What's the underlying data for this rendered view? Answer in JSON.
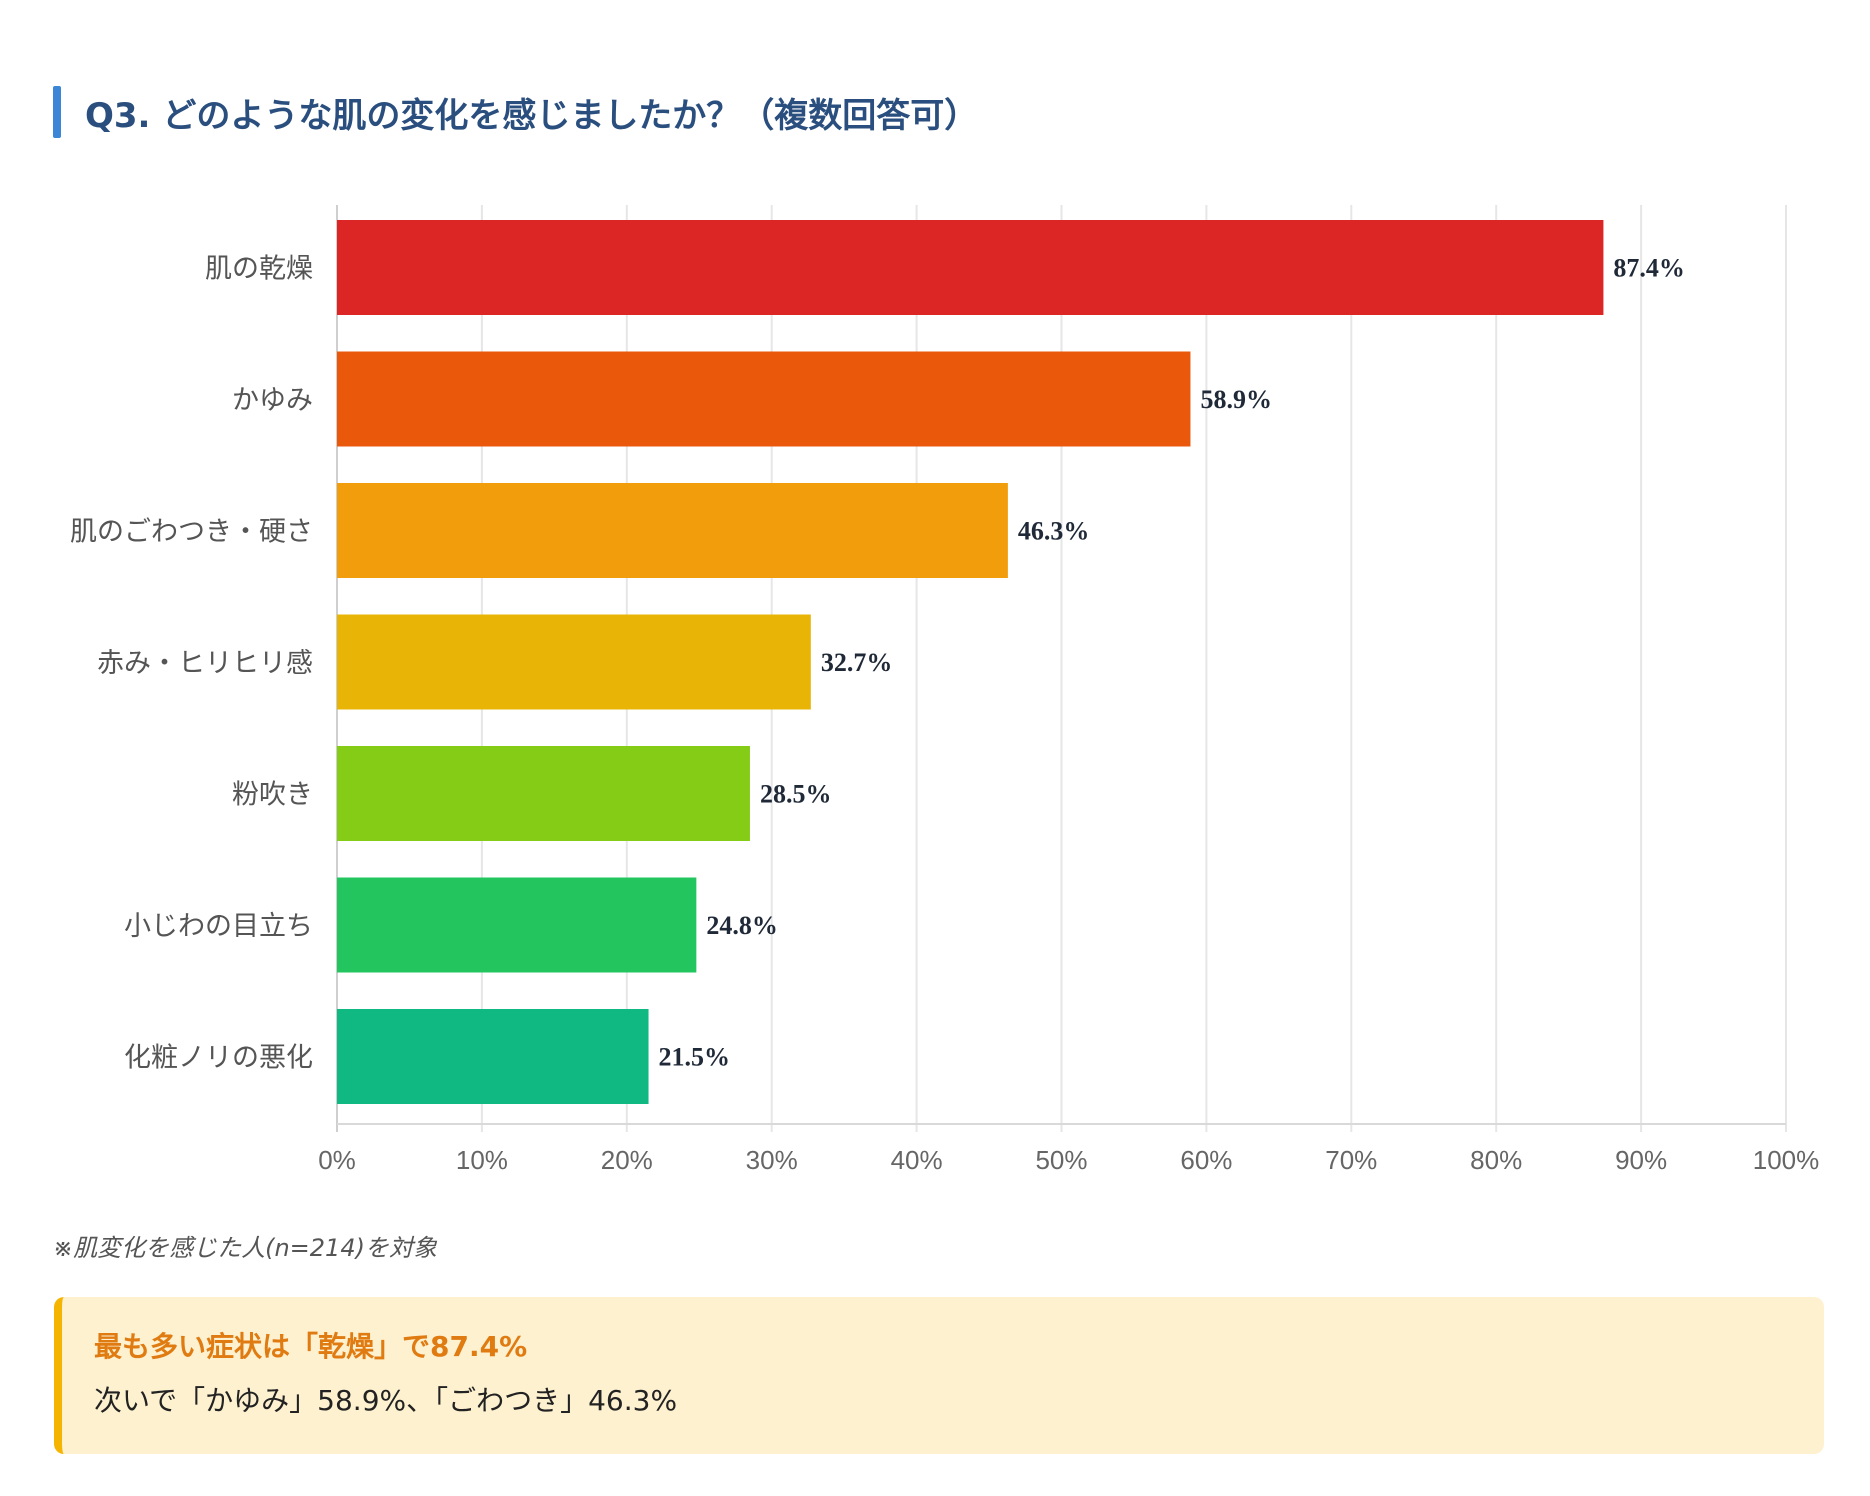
{
  "header": {
    "title": "Q3. どのような肌の変化を感じましたか？（複数回答可）"
  },
  "chart_data": {
    "type": "bar",
    "orientation": "horizontal",
    "title": "Q3. どのような肌の変化を感じましたか？（複数回答可）",
    "categories": [
      "肌の乾燥",
      "かゆみ",
      "肌のごわつき・硬さ",
      "赤み・ヒリヒリ感",
      "粉吹き",
      "小じわの目立ち",
      "化粧ノリの悪化"
    ],
    "values": [
      87.4,
      58.9,
      46.3,
      32.7,
      28.5,
      24.8,
      21.5
    ],
    "value_labels": [
      "87.4%",
      "58.9%",
      "46.3%",
      "32.7%",
      "28.5%",
      "24.8%",
      "21.5%"
    ],
    "colors": [
      "#dc2626",
      "#ea580c",
      "#f29e0c",
      "#e8b506",
      "#84cc16",
      "#22c55e",
      "#10b981"
    ],
    "xlim": [
      0,
      100
    ],
    "x_ticks": [
      "0%",
      "10%",
      "20%",
      "30%",
      "40%",
      "50%",
      "60%",
      "70%",
      "80%",
      "90%",
      "100%"
    ],
    "xlabel": "",
    "ylabel": "",
    "grid": true,
    "legend": "none"
  },
  "note": "※肌変化を感じた人(n=214)を対象",
  "callout": {
    "title": "最も多い症状は「乾燥」で87.4%",
    "body": "次いで「かゆみ」58.9%、「ごわつき」46.3%"
  }
}
